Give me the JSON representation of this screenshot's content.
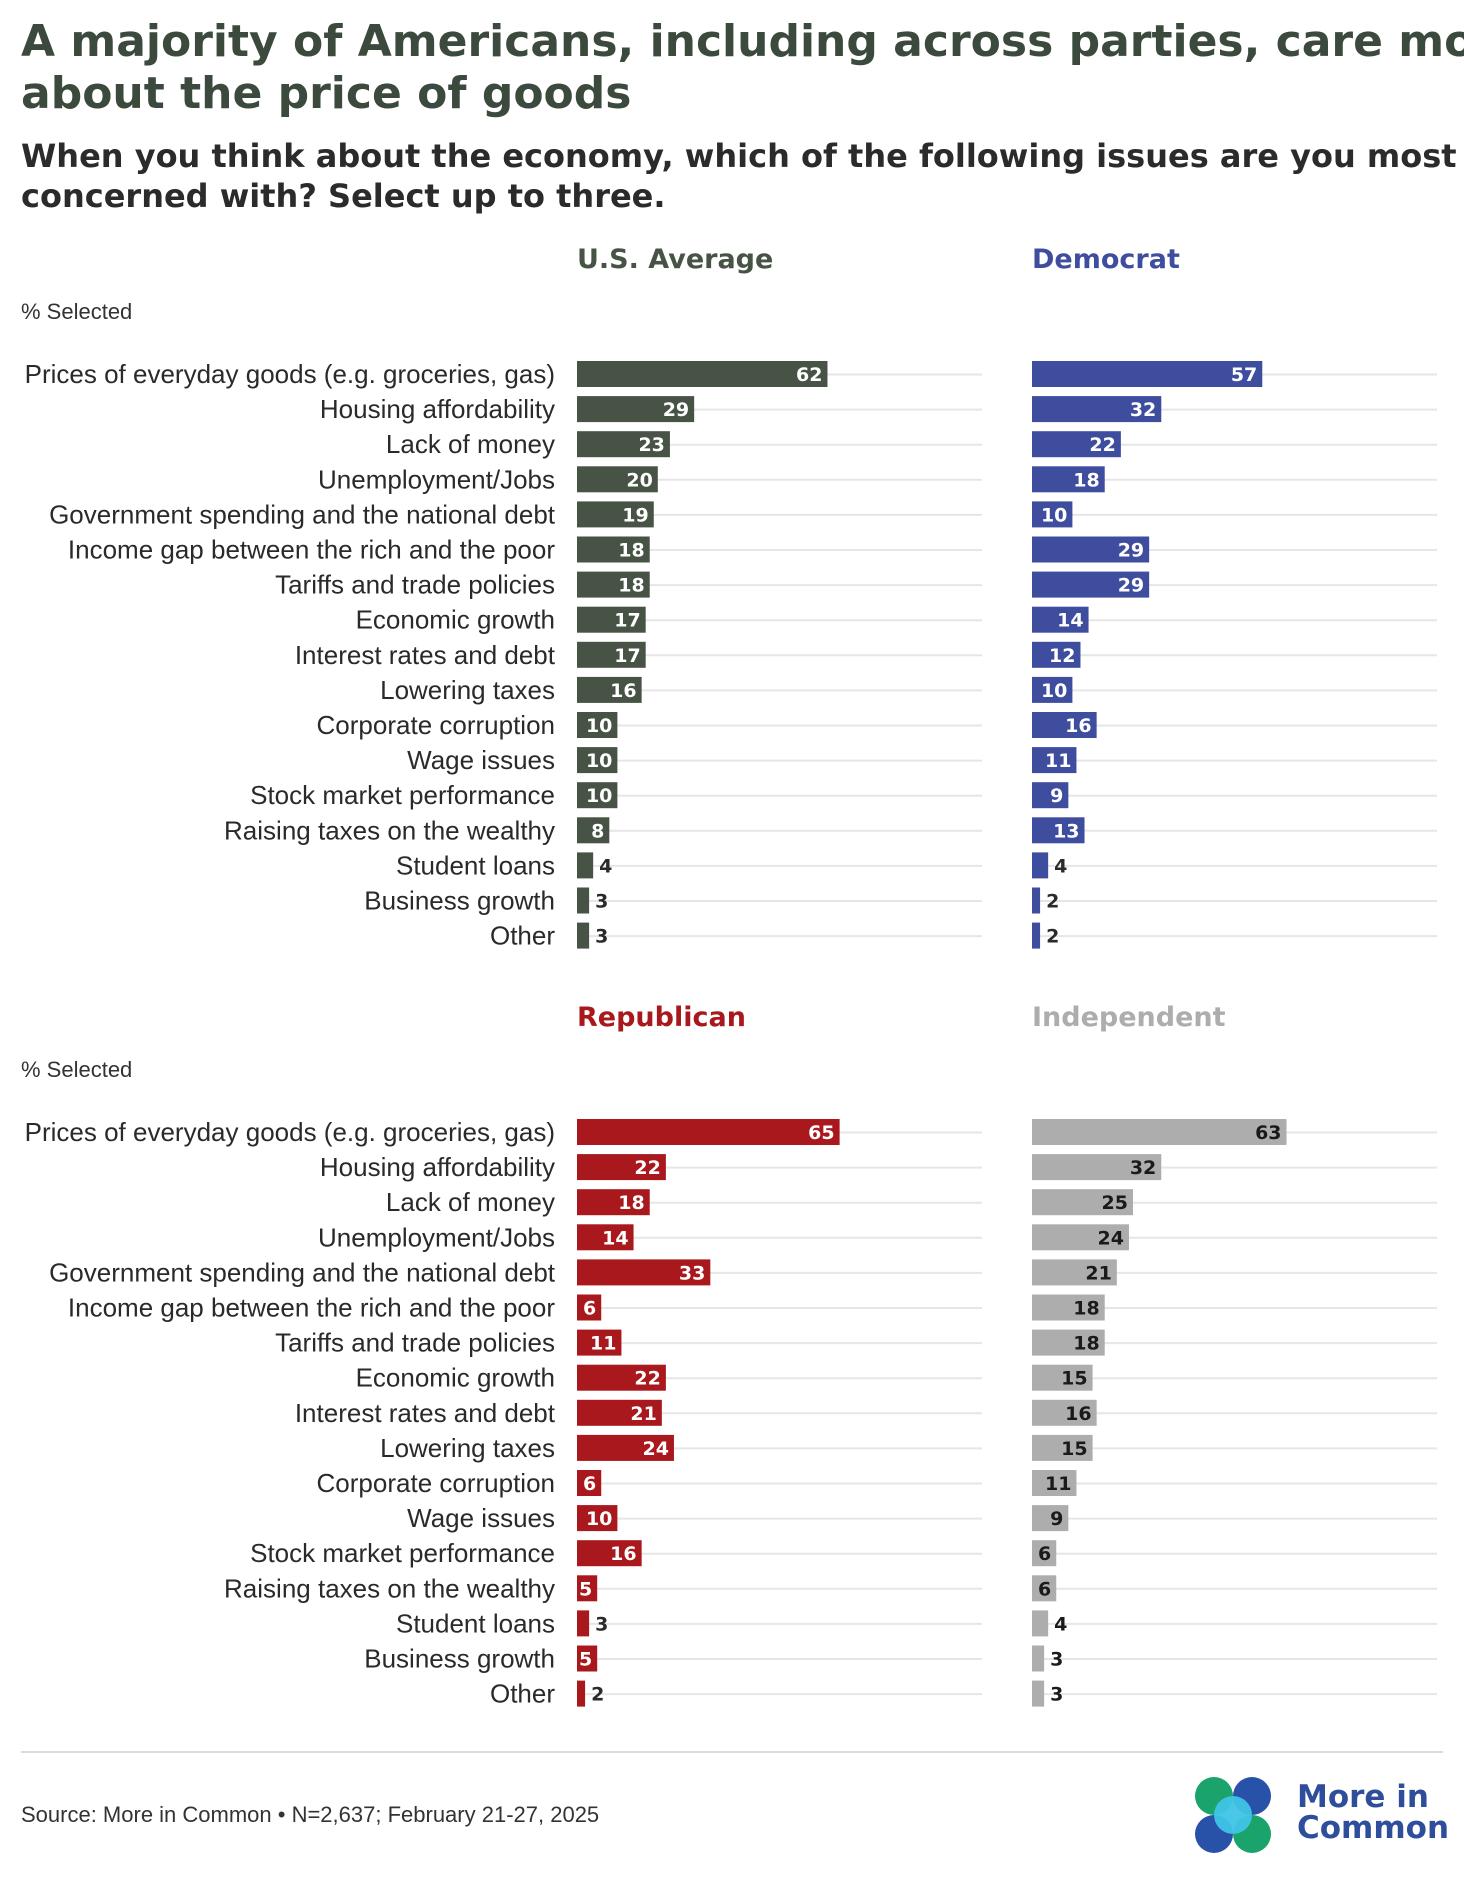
{
  "header": {
    "title_line1": "A majority of Americans, including across parties, care most",
    "title_line2": "about the price of goods",
    "subtitle_line1": "When you think about the economy, which of the following issues are you most",
    "subtitle_line2": "concerned with? Select up to three."
  },
  "footer": {
    "source": "Source: More in Common • N=2,637; February 21-27, 2025",
    "logo_line1": "More in",
    "logo_line2": "Common"
  },
  "colors": {
    "us_average": "#465345",
    "democrat": "#3f4d9f",
    "republican": "#a8181c",
    "independent": "#adadad",
    "gridline": "#e6e6e6",
    "logo_green": "#1aa36b",
    "logo_blue": "#2752a8",
    "logo_cyan": "#3fc4e6"
  },
  "chart_data": [
    {
      "type": "bar",
      "orientation": "horizontal",
      "title": "U.S. Average",
      "ylabel": "% Selected",
      "color": "#465345",
      "xlim": [
        0,
        100
      ],
      "categories": [
        "Prices of everyday goods (e.g. groceries, gas)",
        "Housing affordability",
        "Lack of money",
        "Unemployment/Jobs",
        "Government spending and the national debt",
        "Income gap between the rich and the poor",
        "Tariffs and trade policies",
        "Economic growth",
        "Interest rates and debt",
        "Lowering taxes",
        "Corporate corruption",
        "Wage issues",
        "Stock market performance",
        "Raising taxes on the wealthy",
        "Student loans",
        "Business growth",
        "Other"
      ],
      "values": [
        62,
        29,
        23,
        20,
        19,
        18,
        18,
        17,
        17,
        16,
        10,
        10,
        10,
        8,
        4,
        3,
        3
      ]
    },
    {
      "type": "bar",
      "orientation": "horizontal",
      "title": "Democrat",
      "color": "#3f4d9f",
      "xlim": [
        0,
        100
      ],
      "categories": [
        "Prices of everyday goods (e.g. groceries, gas)",
        "Housing affordability",
        "Lack of money",
        "Unemployment/Jobs",
        "Government spending and the national debt",
        "Income gap between the rich and the poor",
        "Tariffs and trade policies",
        "Economic growth",
        "Interest rates and debt",
        "Lowering taxes",
        "Corporate corruption",
        "Wage issues",
        "Stock market performance",
        "Raising taxes on the wealthy",
        "Student loans",
        "Business growth",
        "Other"
      ],
      "values": [
        57,
        32,
        22,
        18,
        10,
        29,
        29,
        14,
        12,
        10,
        16,
        11,
        9,
        13,
        4,
        2,
        2
      ]
    },
    {
      "type": "bar",
      "orientation": "horizontal",
      "title": "Republican",
      "ylabel": "% Selected",
      "color": "#a8181c",
      "xlim": [
        0,
        100
      ],
      "categories": [
        "Prices of everyday goods (e.g. groceries, gas)",
        "Housing affordability",
        "Lack of money",
        "Unemployment/Jobs",
        "Government spending and the national debt",
        "Income gap between the rich and the poor",
        "Tariffs and trade policies",
        "Economic growth",
        "Interest rates and debt",
        "Lowering taxes",
        "Corporate corruption",
        "Wage issues",
        "Stock market performance",
        "Raising taxes on the wealthy",
        "Student loans",
        "Business growth",
        "Other"
      ],
      "values": [
        65,
        22,
        18,
        14,
        33,
        6,
        11,
        22,
        21,
        24,
        6,
        10,
        16,
        5,
        3,
        5,
        2
      ]
    },
    {
      "type": "bar",
      "orientation": "horizontal",
      "title": "Independent",
      "color": "#adadad",
      "xlim": [
        0,
        100
      ],
      "categories": [
        "Prices of everyday goods (e.g. groceries, gas)",
        "Housing affordability",
        "Lack of money",
        "Unemployment/Jobs",
        "Government spending and the national debt",
        "Income gap between the rich and the poor",
        "Tariffs and trade policies",
        "Economic growth",
        "Interest rates and debt",
        "Lowering taxes",
        "Corporate corruption",
        "Wage issues",
        "Stock market performance",
        "Raising taxes on the wealthy",
        "Student loans",
        "Business growth",
        "Other"
      ],
      "values": [
        63,
        32,
        25,
        24,
        21,
        18,
        18,
        15,
        16,
        15,
        11,
        9,
        6,
        6,
        4,
        3,
        3
      ]
    }
  ]
}
